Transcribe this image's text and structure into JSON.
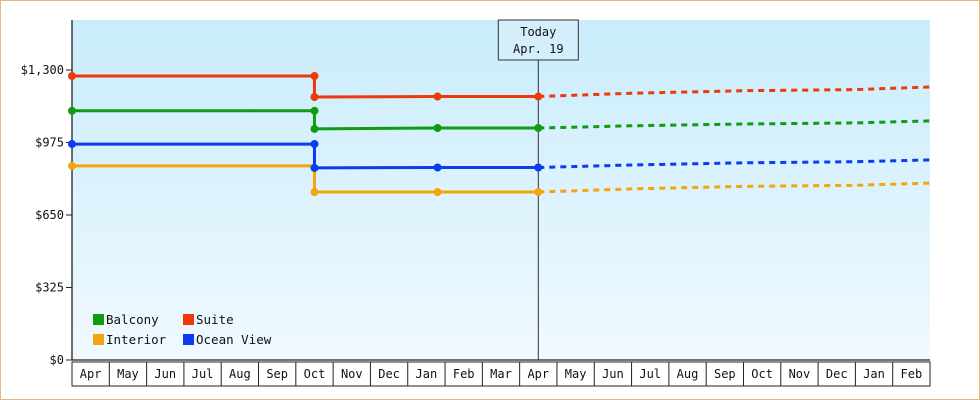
{
  "chart_data": {
    "type": "line",
    "title": "",
    "xlabel": "",
    "ylabel": "",
    "ylim": [
      0,
      1300
    ],
    "y_ticks": [
      "$0",
      "$325",
      "$650",
      "$975",
      "$1,300"
    ],
    "y_tick_values": [
      0,
      325,
      650,
      975,
      1300
    ],
    "categories": [
      "Apr",
      "May",
      "Jun",
      "Jul",
      "Aug",
      "Sep",
      "Oct",
      "Nov",
      "Dec",
      "Jan",
      "Feb",
      "Mar",
      "Apr",
      "May",
      "Jun",
      "Jul",
      "Aug",
      "Sep",
      "Oct",
      "Nov",
      "Dec",
      "Jan",
      "Feb"
    ],
    "today_marker": {
      "line1": "Today",
      "line2": "Apr. 19",
      "category_index": 12.5
    },
    "grid": false,
    "legend_position": "bottom-left inside",
    "series": [
      {
        "name": "Balcony",
        "color": "#109c10",
        "history": [
          [
            0,
            1117
          ],
          [
            6.5,
            1117
          ],
          [
            6.5,
            1036
          ],
          [
            9.8,
            1040
          ],
          [
            12.5,
            1040
          ]
        ],
        "forecast": [
          [
            12.5,
            1040
          ],
          [
            15,
            1050
          ],
          [
            18,
            1058
          ],
          [
            21,
            1063
          ],
          [
            23,
            1072
          ]
        ]
      },
      {
        "name": "Suite",
        "color": "#ee3a0a",
        "history": [
          [
            0,
            1273
          ],
          [
            6.5,
            1273
          ],
          [
            6.5,
            1179
          ],
          [
            9.8,
            1181
          ],
          [
            12.5,
            1181
          ]
        ],
        "forecast": [
          [
            12.5,
            1181
          ],
          [
            15,
            1196
          ],
          [
            18,
            1207
          ],
          [
            21,
            1212
          ],
          [
            23,
            1224
          ]
        ]
      },
      {
        "name": "Interior",
        "color": "#f3a50d",
        "history": [
          [
            0,
            870
          ],
          [
            6.5,
            870
          ],
          [
            6.5,
            753
          ],
          [
            9.8,
            753
          ],
          [
            12.5,
            753
          ]
        ],
        "forecast": [
          [
            12.5,
            753
          ],
          [
            15,
            767
          ],
          [
            18,
            778
          ],
          [
            21,
            783
          ],
          [
            23,
            793
          ]
        ]
      },
      {
        "name": "Ocean View",
        "color": "#0b3cf0",
        "history": [
          [
            0,
            968
          ],
          [
            6.5,
            968
          ],
          [
            6.5,
            861
          ],
          [
            9.8,
            863
          ],
          [
            12.5,
            863
          ]
        ],
        "forecast": [
          [
            12.5,
            863
          ],
          [
            15,
            874
          ],
          [
            18,
            884
          ],
          [
            21,
            889
          ],
          [
            23,
            897
          ]
        ]
      }
    ],
    "markers": [
      {
        "series": "Suite",
        "points": [
          [
            0,
            1273
          ],
          [
            6.5,
            1273
          ],
          [
            6.5,
            1179
          ],
          [
            9.8,
            1181
          ],
          [
            12.5,
            1181
          ]
        ]
      },
      {
        "series": "Balcony",
        "points": [
          [
            0,
            1117
          ],
          [
            6.5,
            1117
          ],
          [
            6.5,
            1036
          ],
          [
            9.8,
            1040
          ],
          [
            12.5,
            1040
          ]
        ]
      },
      {
        "series": "Ocean View",
        "points": [
          [
            0,
            968
          ],
          [
            6.5,
            968
          ],
          [
            6.5,
            861
          ],
          [
            9.8,
            863
          ],
          [
            12.5,
            863
          ]
        ]
      },
      {
        "series": "Interior",
        "points": [
          [
            0,
            870
          ],
          [
            6.5,
            753
          ],
          [
            9.8,
            753
          ],
          [
            12.5,
            753
          ]
        ]
      }
    ],
    "colors": {
      "plot_bg_top": "#c9ecfb",
      "plot_bg_bottom": "#f0f9ff",
      "frame_border": "#e8b97a",
      "axis": "#222222"
    }
  },
  "legend": {
    "items": [
      {
        "label": "Balcony",
        "color": "#109c10"
      },
      {
        "label": "Suite",
        "color": "#ee3a0a"
      },
      {
        "label": "Interior",
        "color": "#f3a50d"
      },
      {
        "label": "Ocean View",
        "color": "#0b3cf0"
      }
    ]
  },
  "today": {
    "line1": "Today",
    "line2": "Apr. 19"
  }
}
